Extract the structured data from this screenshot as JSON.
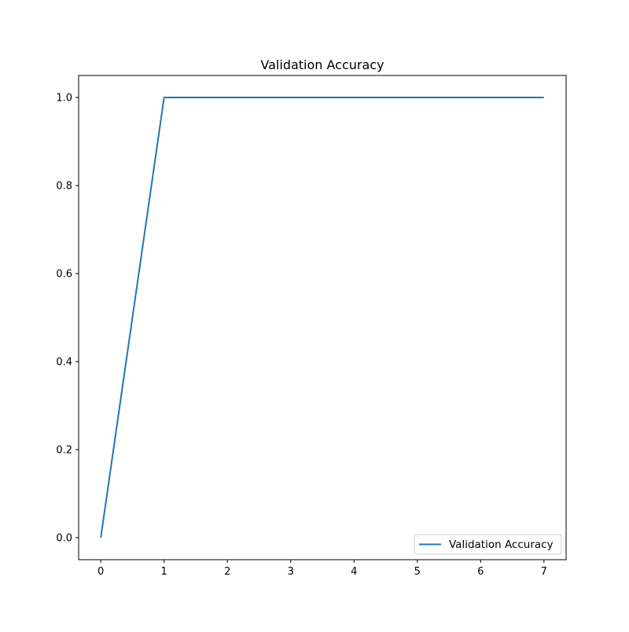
{
  "chart_data": {
    "type": "line",
    "title": "Validation Accuracy",
    "xlabel": "",
    "ylabel": "",
    "xlim": [
      -0.35,
      7.35
    ],
    "ylim": [
      -0.05,
      1.05
    ],
    "x_ticks": [
      "0",
      "1",
      "2",
      "3",
      "4",
      "5",
      "6",
      "7"
    ],
    "y_ticks": [
      "0.0",
      "0.2",
      "0.4",
      "0.6",
      "0.8",
      "1.0"
    ],
    "grid": false,
    "legend_position": "lower-right",
    "series": [
      {
        "name": "Validation Accuracy",
        "color": "#1f77b4",
        "x": [
          0,
          1,
          2,
          3,
          4,
          5,
          6,
          7
        ],
        "values": [
          0.0,
          1.0,
          1.0,
          1.0,
          1.0,
          1.0,
          1.0,
          1.0
        ]
      }
    ]
  }
}
